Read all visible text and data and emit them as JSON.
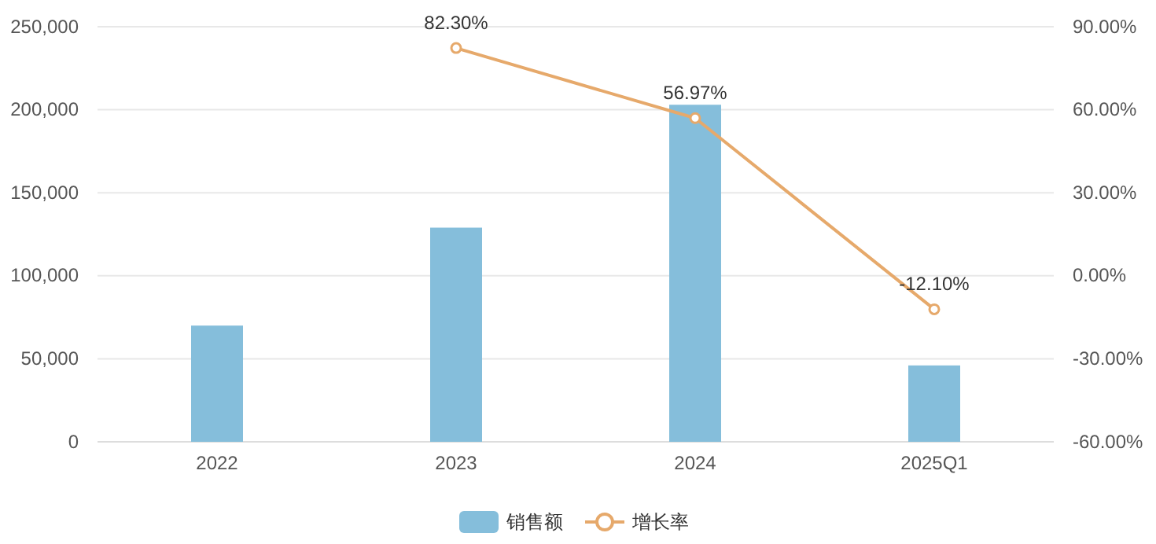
{
  "chart_data": {
    "type": "bar",
    "categories": [
      "2022",
      "2023",
      "2024",
      "2025Q1"
    ],
    "series": [
      {
        "name": "销售额",
        "color": "#85bedb",
        "values": [
          70000,
          129000,
          203000,
          46000
        ]
      },
      {
        "name": "增长率",
        "type": "line",
        "axis": "y2",
        "color": "#e6a96b",
        "marker": "circle",
        "values": [
          null,
          82.3,
          56.97,
          -12.1
        ],
        "value_labels": [
          null,
          "82.30%",
          "56.97%",
          "-12.10%"
        ]
      }
    ],
    "ylim": [
      0,
      250000
    ],
    "yticks": [
      {
        "value": 0,
        "label": "0"
      },
      {
        "value": 50000,
        "label": "50,000"
      },
      {
        "value": 100000,
        "label": "100,000"
      },
      {
        "value": 150000,
        "label": "150,000"
      },
      {
        "value": 200000,
        "label": "200,000"
      },
      {
        "value": 250000,
        "label": "250,000"
      }
    ],
    "y2lim": [
      -60,
      90
    ],
    "y2ticks": [
      {
        "value": -60,
        "label": "-60.00%"
      },
      {
        "value": -30,
        "label": "-30.00%"
      },
      {
        "value": 0,
        "label": "0.00%"
      },
      {
        "value": 30,
        "label": "30.00%"
      },
      {
        "value": 60,
        "label": "60.00%"
      },
      {
        "value": 90,
        "label": "90.00%"
      }
    ],
    "grid": "y",
    "legend": "bottom"
  }
}
